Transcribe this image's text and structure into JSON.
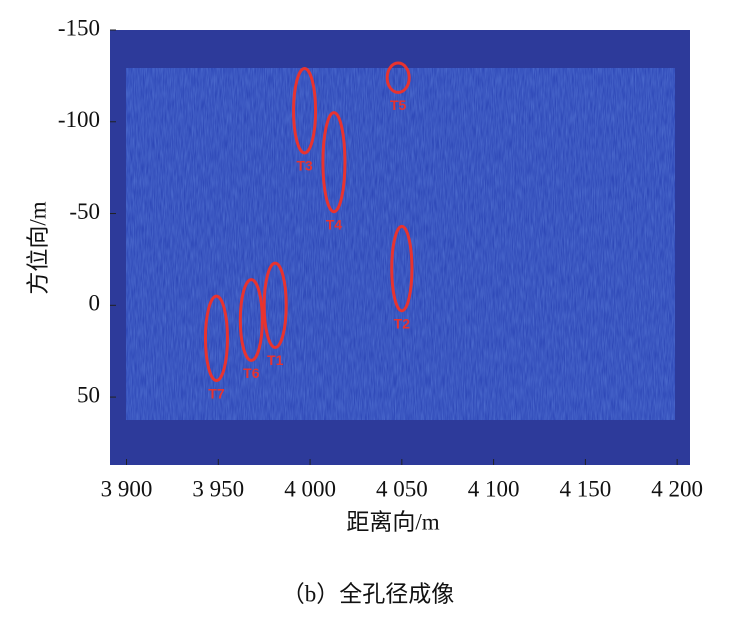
{
  "chart_data": {
    "type": "image",
    "xlabel": "距离向/m",
    "ylabel": "方位向/m",
    "caption": "（b）全孔径成像",
    "xlim": [
      3891,
      4207
    ],
    "ylim": [
      -150,
      87
    ],
    "y_reversed": true,
    "xticks": [
      {
        "value": 3900,
        "label": "3 900"
      },
      {
        "value": 3950,
        "label": "3 950"
      },
      {
        "value": 4000,
        "label": "4 000"
      },
      {
        "value": 4050,
        "label": "4 050"
      },
      {
        "value": 4100,
        "label": "4 100"
      },
      {
        "value": 4150,
        "label": "4 150"
      },
      {
        "value": 4200,
        "label": "4 200"
      }
    ],
    "yticks": [
      -150,
      -100,
      -50,
      0,
      50
    ],
    "annotation_color": "#e8332f",
    "annotations": [
      {
        "label": "T1",
        "x": 3981,
        "y": 0,
        "rx": 6,
        "ry": 23
      },
      {
        "label": "T2",
        "x": 4050,
        "y": -20,
        "rx": 5.5,
        "ry": 23
      },
      {
        "label": "T3",
        "x": 3997,
        "y": -106,
        "rx": 6,
        "ry": 23
      },
      {
        "label": "T4",
        "x": 4013,
        "y": -78,
        "rx": 6,
        "ry": 27
      },
      {
        "label": "T5",
        "x": 4048,
        "y": -124,
        "rx": 6,
        "ry": 8
      },
      {
        "label": "T6",
        "x": 3968,
        "y": 8,
        "rx": 6,
        "ry": 22
      },
      {
        "label": "T7",
        "x": 3949,
        "y": 18,
        "rx": 6,
        "ry": 23
      }
    ]
  }
}
